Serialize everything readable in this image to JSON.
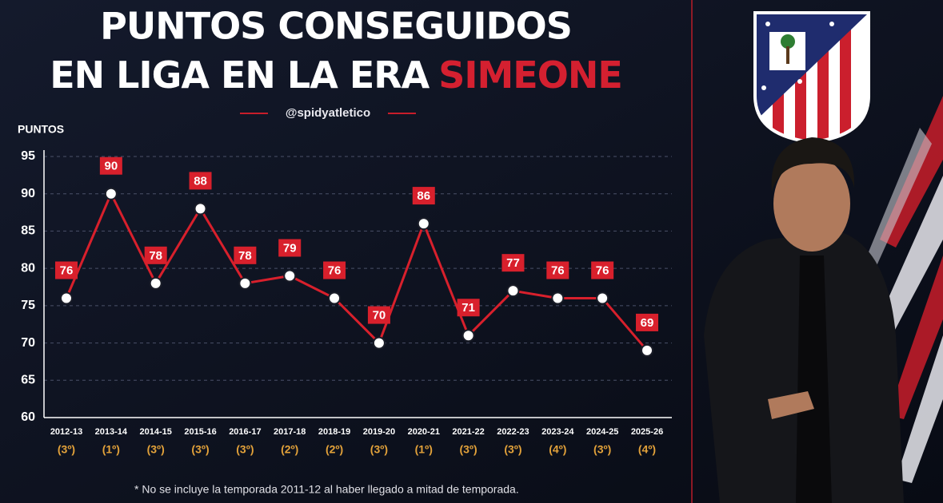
{
  "chart_data": {
    "type": "line",
    "title_lines": [
      "PUNTOS CONSEGUIDOS",
      "EN LIGA EN LA ERA"
    ],
    "title_highlight": "SIMEONE",
    "handle": "@spidyatletico",
    "y_label": "PUNTOS",
    "categories": [
      "2012-13",
      "2013-14",
      "2014-15",
      "2015-16",
      "2016-17",
      "2017-18",
      "2018-19",
      "2019-20",
      "2020-21",
      "2021-22",
      "2022-23",
      "2023-24",
      "2024-25",
      "2025-26"
    ],
    "ranks": [
      "(3º)",
      "(1º)",
      "(3º)",
      "(3º)",
      "(3º)",
      "(2º)",
      "(2º)",
      "(3º)",
      "(1º)",
      "(3º)",
      "(3º)",
      "(4º)",
      "(3º)",
      "(4º)"
    ],
    "values": [
      76,
      90,
      78,
      88,
      78,
      79,
      76,
      70,
      86,
      71,
      77,
      76,
      76,
      69
    ],
    "color": "#d8202c",
    "ylim": [
      60,
      95
    ],
    "yticks": [
      60,
      65,
      70,
      75,
      80,
      85,
      90,
      95
    ],
    "grid": true,
    "footnote": "* No se incluye la temporada 2011-12 al haber llegado a mitad de temporada."
  }
}
